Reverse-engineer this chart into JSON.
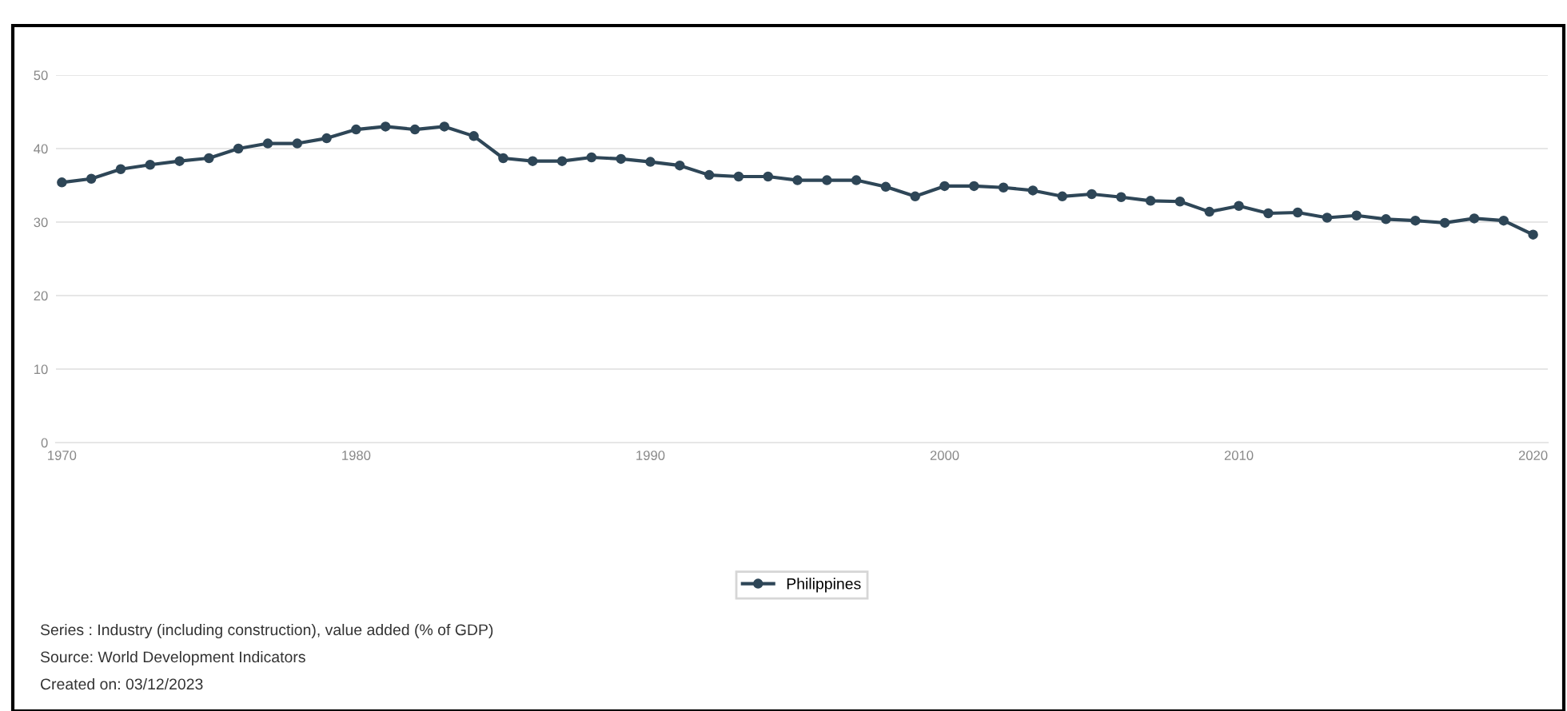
{
  "chart_data": {
    "type": "line",
    "x": [
      1970,
      1971,
      1972,
      1973,
      1974,
      1975,
      1976,
      1977,
      1978,
      1979,
      1980,
      1981,
      1982,
      1983,
      1984,
      1985,
      1986,
      1987,
      1988,
      1989,
      1990,
      1991,
      1992,
      1993,
      1994,
      1995,
      1996,
      1997,
      1998,
      1999,
      2000,
      2001,
      2002,
      2003,
      2004,
      2005,
      2006,
      2007,
      2008,
      2009,
      2010,
      2011,
      2012,
      2013,
      2014,
      2015,
      2016,
      2017,
      2018,
      2019,
      2020
    ],
    "series": [
      {
        "name": "Philippines",
        "color": "#2e4657",
        "values": [
          35.4,
          35.9,
          37.2,
          37.8,
          38.3,
          38.7,
          40.0,
          40.7,
          40.7,
          41.4,
          42.6,
          43.0,
          42.6,
          43.0,
          41.7,
          38.7,
          38.3,
          38.3,
          38.8,
          38.6,
          38.2,
          37.7,
          36.4,
          36.2,
          36.2,
          35.7,
          35.7,
          35.7,
          34.8,
          33.5,
          34.9,
          34.9,
          34.7,
          34.3,
          33.5,
          33.8,
          33.4,
          32.9,
          32.8,
          31.4,
          32.2,
          31.2,
          31.3,
          30.6,
          30.9,
          30.4,
          30.2,
          29.9,
          30.5,
          30.2,
          28.3
        ]
      }
    ],
    "xlim": [
      1969.8,
      2020.5
    ],
    "xticks": [
      1970,
      1980,
      1990,
      2000,
      2010,
      2020
    ],
    "ylim": [
      0,
      50
    ],
    "yticks": [
      0,
      10,
      20,
      30,
      40,
      50
    ],
    "grid": "y",
    "legend": "bottom",
    "marker": "circle",
    "line_style": "solid",
    "annotations": [
      "Series : Industry (including construction), value added (% of GDP)",
      "Source: World Development Indicators",
      "Created on: 03/12/2023"
    ]
  }
}
